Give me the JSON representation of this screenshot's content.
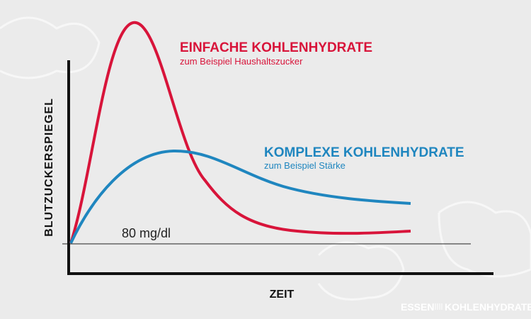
{
  "curves": {
    "simple": {
      "title": "EINFACHE KOHLENHYDRATE",
      "subtitle": "zum Beispiel Haushaltszucker"
    },
    "complex": {
      "title": "KOMPLEXE KOHLENHYDRATE",
      "subtitle": "zum Beispiel Stärke"
    }
  },
  "baseline_label": "80 mg/dl",
  "y_axis_label": "BLUTZUCKERSPIEGEL",
  "x_axis_label": "ZEIT",
  "logo": {
    "left": "ESSEN",
    "right": "KOHLENHYDRATE"
  }
}
